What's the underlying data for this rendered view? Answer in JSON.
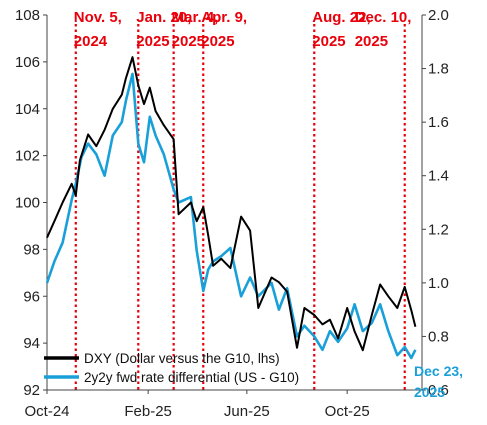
{
  "chart_data": {
    "type": "line",
    "title": "",
    "xlabel": "",
    "ylabel": "",
    "x_tick_labels": [
      "Oct-24",
      "Feb-25",
      "Jun-25",
      "Oct-25"
    ],
    "x_tick_dates": [
      "2024-10-01",
      "2025-02-01",
      "2025-06-01",
      "2025-10-01"
    ],
    "x_range": [
      "2024-10-01",
      "2025-12-31"
    ],
    "y_left": {
      "min": 92,
      "max": 108,
      "ticks": [
        "92",
        "94",
        "96",
        "98",
        "100",
        "102",
        "104",
        "106",
        "108"
      ]
    },
    "y_right": {
      "min": 0.6,
      "max": 2.0,
      "ticks": [
        "0.6",
        "0.8",
        "1.0",
        "1.2",
        "1.4",
        "1.6",
        "1.8",
        "2.0"
      ]
    },
    "grid": false,
    "legend_position": "bottom-left",
    "series": [
      {
        "name": "DXY (Dollar versus the G10, lhs)",
        "axis": "left",
        "color": "#000000",
        "points": [
          [
            "2024-10-01",
            98.5
          ],
          [
            "2024-10-10",
            99.2
          ],
          [
            "2024-10-20",
            100.0
          ],
          [
            "2024-10-31",
            100.8
          ],
          [
            "2024-11-05",
            100.3
          ],
          [
            "2024-11-10",
            101.8
          ],
          [
            "2024-11-20",
            102.9
          ],
          [
            "2024-11-30",
            102.4
          ],
          [
            "2024-12-10",
            103.1
          ],
          [
            "2024-12-20",
            104.0
          ],
          [
            "2024-12-31",
            104.6
          ],
          [
            "2025-01-05",
            105.3
          ],
          [
            "2025-01-13",
            106.2
          ],
          [
            "2025-01-20",
            105.0
          ],
          [
            "2025-01-27",
            104.2
          ],
          [
            "2025-02-03",
            104.9
          ],
          [
            "2025-02-10",
            103.9
          ],
          [
            "2025-02-20",
            103.3
          ],
          [
            "2025-03-04",
            102.7
          ],
          [
            "2025-03-10",
            99.5
          ],
          [
            "2025-03-25",
            100.0
          ],
          [
            "2025-04-01",
            99.2
          ],
          [
            "2025-04-09",
            99.8
          ],
          [
            "2025-04-15",
            98.6
          ],
          [
            "2025-04-21",
            97.3
          ],
          [
            "2025-05-01",
            97.6
          ],
          [
            "2025-05-12",
            97.2
          ],
          [
            "2025-05-25",
            99.4
          ],
          [
            "2025-06-05",
            98.8
          ],
          [
            "2025-06-15",
            95.5
          ],
          [
            "2025-07-01",
            96.8
          ],
          [
            "2025-07-10",
            96.6
          ],
          [
            "2025-07-20",
            96.2
          ],
          [
            "2025-08-01",
            93.8
          ],
          [
            "2025-08-10",
            95.5
          ],
          [
            "2025-08-22",
            95.2
          ],
          [
            "2025-09-01",
            94.8
          ],
          [
            "2025-09-10",
            95.0
          ],
          [
            "2025-09-20",
            94.2
          ],
          [
            "2025-10-01",
            95.5
          ],
          [
            "2025-10-10",
            94.5
          ],
          [
            "2025-10-20",
            93.7
          ],
          [
            "2025-10-31",
            95.2
          ],
          [
            "2025-11-10",
            96.5
          ],
          [
            "2025-11-20",
            96.0
          ],
          [
            "2025-12-01",
            95.5
          ],
          [
            "2025-12-10",
            96.4
          ],
          [
            "2025-12-18",
            95.4
          ],
          [
            "2025-12-23",
            94.7
          ]
        ]
      },
      {
        "name": "2y2y fwd rate differential (US - G10)",
        "axis": "right",
        "color": "#1aa0d8",
        "points": [
          [
            "2024-10-01",
            1.0
          ],
          [
            "2024-10-10",
            1.08
          ],
          [
            "2024-10-20",
            1.15
          ],
          [
            "2024-10-31",
            1.31
          ],
          [
            "2024-11-05",
            1.37
          ],
          [
            "2024-11-12",
            1.47
          ],
          [
            "2024-11-20",
            1.52
          ],
          [
            "2024-11-30",
            1.48
          ],
          [
            "2024-12-10",
            1.4
          ],
          [
            "2024-12-20",
            1.55
          ],
          [
            "2024-12-31",
            1.6
          ],
          [
            "2025-01-05",
            1.68
          ],
          [
            "2025-01-13",
            1.78
          ],
          [
            "2025-01-20",
            1.52
          ],
          [
            "2025-01-27",
            1.45
          ],
          [
            "2025-02-03",
            1.62
          ],
          [
            "2025-02-10",
            1.55
          ],
          [
            "2025-02-20",
            1.48
          ],
          [
            "2025-03-04",
            1.35
          ],
          [
            "2025-03-10",
            1.3
          ],
          [
            "2025-03-25",
            1.32
          ],
          [
            "2025-04-01",
            1.12
          ],
          [
            "2025-04-09",
            0.97
          ],
          [
            "2025-04-15",
            1.05
          ],
          [
            "2025-04-21",
            1.08
          ],
          [
            "2025-05-01",
            1.1
          ],
          [
            "2025-05-12",
            1.13
          ],
          [
            "2025-05-25",
            0.95
          ],
          [
            "2025-06-05",
            1.02
          ],
          [
            "2025-06-15",
            0.95
          ],
          [
            "2025-07-01",
            1.0
          ],
          [
            "2025-07-10",
            0.9
          ],
          [
            "2025-07-20",
            0.98
          ],
          [
            "2025-08-01",
            0.8
          ],
          [
            "2025-08-10",
            0.84
          ],
          [
            "2025-08-22",
            0.8
          ],
          [
            "2025-09-01",
            0.75
          ],
          [
            "2025-09-10",
            0.82
          ],
          [
            "2025-09-20",
            0.78
          ],
          [
            "2025-10-01",
            0.83
          ],
          [
            "2025-10-10",
            0.92
          ],
          [
            "2025-10-20",
            0.82
          ],
          [
            "2025-10-31",
            0.85
          ],
          [
            "2025-11-10",
            0.92
          ],
          [
            "2025-11-20",
            0.82
          ],
          [
            "2025-12-01",
            0.73
          ],
          [
            "2025-12-10",
            0.76
          ],
          [
            "2025-12-18",
            0.72
          ],
          [
            "2025-12-23",
            0.75
          ]
        ]
      }
    ],
    "events": [
      {
        "date": "2024-11-05",
        "line1": "Nov. 5,",
        "line2": "2024"
      },
      {
        "date": "2025-01-20",
        "line1": "Jan. 20,",
        "line2": "2025"
      },
      {
        "date": "2025-03-04",
        "line1": "Mar. 4,",
        "line2": "2025"
      },
      {
        "date": "2025-04-09",
        "line1": "Apr. 9,",
        "line2": "2025"
      },
      {
        "date": "2025-08-22",
        "line1": "Aug. 22,",
        "line2": "2025"
      },
      {
        "date": "2025-12-10",
        "line1": "Dec. 10,",
        "line2": "2025"
      }
    ],
    "event_line_color": "#e8000b",
    "end_annotation": {
      "date": "2025-12-23",
      "line1": "Dec 23,",
      "line2": "2025",
      "color": "#1aa0d8"
    }
  }
}
